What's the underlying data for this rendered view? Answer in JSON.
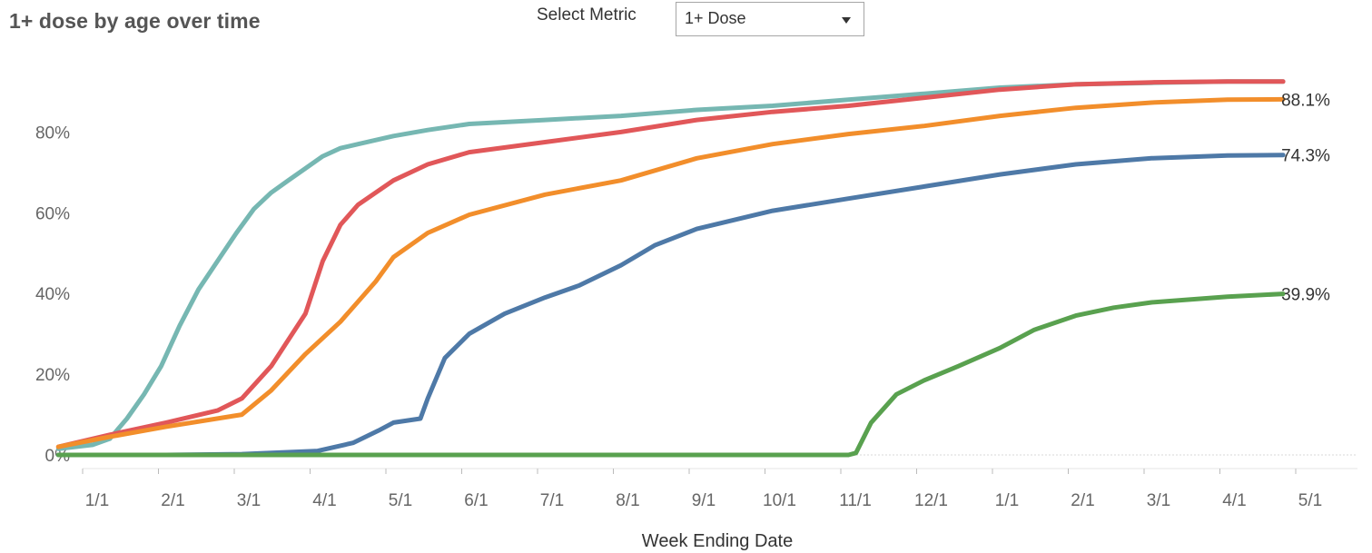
{
  "header": {
    "title": "1+ dose by age over time",
    "select_label": "Select Metric",
    "select_value": "1+ Dose"
  },
  "icons": {
    "dropdown": "caret-down-icon"
  },
  "chart_data": {
    "type": "line",
    "title": "1+ dose by age over time",
    "xlabel": "Week Ending Date",
    "ylabel": "",
    "x_ticks": [
      "1/1",
      "2/1",
      "3/1",
      "4/1",
      "5/1",
      "6/1",
      "7/1",
      "8/1",
      "9/1",
      "10/1",
      "11/1",
      "12/1",
      "1/1",
      "2/1",
      "3/1",
      "4/1",
      "5/1"
    ],
    "y_ticks": [
      "0%",
      "20%",
      "40%",
      "60%",
      "80%"
    ],
    "ylim": [
      0,
      100
    ],
    "grid": false,
    "series": [
      {
        "color": "#76b7b2",
        "end_label": "",
        "points": [
          [
            "2020-12-19",
            1.5
          ],
          [
            "2021-01-02",
            2.5
          ],
          [
            "2021-01-09",
            4
          ],
          [
            "2021-01-16",
            9
          ],
          [
            "2021-01-23",
            15
          ],
          [
            "2021-01-30",
            22
          ],
          [
            "2021-02-06",
            32
          ],
          [
            "2021-02-13",
            41
          ],
          [
            "2021-02-20",
            48
          ],
          [
            "2021-02-27",
            55
          ],
          [
            "2021-03-06",
            61
          ],
          [
            "2021-03-13",
            65
          ],
          [
            "2021-03-20",
            68
          ],
          [
            "2021-03-27",
            71
          ],
          [
            "2021-04-03",
            74
          ],
          [
            "2021-04-10",
            76
          ],
          [
            "2021-04-17",
            77
          ],
          [
            "2021-05-01",
            79
          ],
          [
            "2021-05-15",
            80.5
          ],
          [
            "2021-06-01",
            82
          ],
          [
            "2021-07-01",
            83
          ],
          [
            "2021-08-01",
            84
          ],
          [
            "2021-09-01",
            85.5
          ],
          [
            "2021-10-01",
            86.5
          ],
          [
            "2021-11-01",
            88
          ],
          [
            "2021-12-01",
            89.5
          ],
          [
            "2022-01-01",
            91
          ],
          [
            "2022-02-01",
            91.8
          ],
          [
            "2022-03-01",
            92.2
          ],
          [
            "2022-04-01",
            92.5
          ],
          [
            "2022-04-23",
            92.5
          ]
        ]
      },
      {
        "color": "#e15759",
        "end_label": "",
        "points": [
          [
            "2020-12-19",
            2
          ],
          [
            "2021-01-09",
            5
          ],
          [
            "2021-02-01",
            8
          ],
          [
            "2021-02-20",
            11
          ],
          [
            "2021-03-01",
            14
          ],
          [
            "2021-03-13",
            22
          ],
          [
            "2021-03-27",
            35
          ],
          [
            "2021-04-03",
            48
          ],
          [
            "2021-04-10",
            57
          ],
          [
            "2021-04-17",
            62
          ],
          [
            "2021-05-01",
            68
          ],
          [
            "2021-05-15",
            72
          ],
          [
            "2021-06-01",
            75
          ],
          [
            "2021-07-01",
            77.5
          ],
          [
            "2021-08-01",
            80
          ],
          [
            "2021-09-01",
            83
          ],
          [
            "2021-10-01",
            85
          ],
          [
            "2021-11-01",
            86.5
          ],
          [
            "2021-12-01",
            88.5
          ],
          [
            "2022-01-01",
            90.5
          ],
          [
            "2022-02-01",
            91.8
          ],
          [
            "2022-03-01",
            92.3
          ],
          [
            "2022-04-01",
            92.5
          ],
          [
            "2022-04-23",
            92.5
          ]
        ]
      },
      {
        "color": "#f28e2b",
        "end_label": "88.1%",
        "points": [
          [
            "2020-12-19",
            2
          ],
          [
            "2021-01-09",
            4.5
          ],
          [
            "2021-02-01",
            7
          ],
          [
            "2021-03-01",
            10
          ],
          [
            "2021-03-13",
            16
          ],
          [
            "2021-03-27",
            25
          ],
          [
            "2021-04-10",
            33
          ],
          [
            "2021-04-24",
            43
          ],
          [
            "2021-05-01",
            49
          ],
          [
            "2021-05-15",
            55
          ],
          [
            "2021-06-01",
            59.5
          ],
          [
            "2021-07-01",
            64.5
          ],
          [
            "2021-08-01",
            68
          ],
          [
            "2021-09-01",
            73.5
          ],
          [
            "2021-10-01",
            77
          ],
          [
            "2021-11-01",
            79.5
          ],
          [
            "2021-12-01",
            81.5
          ],
          [
            "2022-01-01",
            84
          ],
          [
            "2022-02-01",
            86
          ],
          [
            "2022-03-01",
            87.3
          ],
          [
            "2022-04-01",
            88
          ],
          [
            "2022-04-23",
            88.1
          ]
        ]
      },
      {
        "color": "#4e79a7",
        "end_label": "74.3%",
        "points": [
          [
            "2020-12-19",
            0
          ],
          [
            "2021-02-01",
            0
          ],
          [
            "2021-03-01",
            0.2
          ],
          [
            "2021-04-01",
            1
          ],
          [
            "2021-04-15",
            3
          ],
          [
            "2021-04-25",
            6
          ],
          [
            "2021-05-01",
            8
          ],
          [
            "2021-05-12",
            9
          ],
          [
            "2021-05-15",
            14
          ],
          [
            "2021-05-22",
            24
          ],
          [
            "2021-06-01",
            30
          ],
          [
            "2021-06-15",
            35
          ],
          [
            "2021-07-01",
            39
          ],
          [
            "2021-07-15",
            42
          ],
          [
            "2021-08-01",
            47
          ],
          [
            "2021-08-15",
            52
          ],
          [
            "2021-09-01",
            56
          ],
          [
            "2021-10-01",
            60.5
          ],
          [
            "2021-11-01",
            63.5
          ],
          [
            "2021-12-01",
            66.5
          ],
          [
            "2022-01-01",
            69.5
          ],
          [
            "2022-02-01",
            72
          ],
          [
            "2022-03-01",
            73.5
          ],
          [
            "2022-04-01",
            74.2
          ],
          [
            "2022-04-23",
            74.3
          ]
        ]
      },
      {
        "color": "#59a14f",
        "end_label": "39.9%",
        "points": [
          [
            "2020-12-19",
            0
          ],
          [
            "2021-11-01",
            0
          ],
          [
            "2021-11-04",
            0.5
          ],
          [
            "2021-11-10",
            8
          ],
          [
            "2021-11-20",
            15
          ],
          [
            "2021-12-01",
            18.5
          ],
          [
            "2021-12-15",
            22
          ],
          [
            "2022-01-01",
            26.5
          ],
          [
            "2022-01-15",
            31
          ],
          [
            "2022-02-01",
            34.5
          ],
          [
            "2022-02-15",
            36.5
          ],
          [
            "2022-03-01",
            37.8
          ],
          [
            "2022-04-01",
            39.2
          ],
          [
            "2022-04-23",
            39.9
          ]
        ]
      }
    ]
  }
}
